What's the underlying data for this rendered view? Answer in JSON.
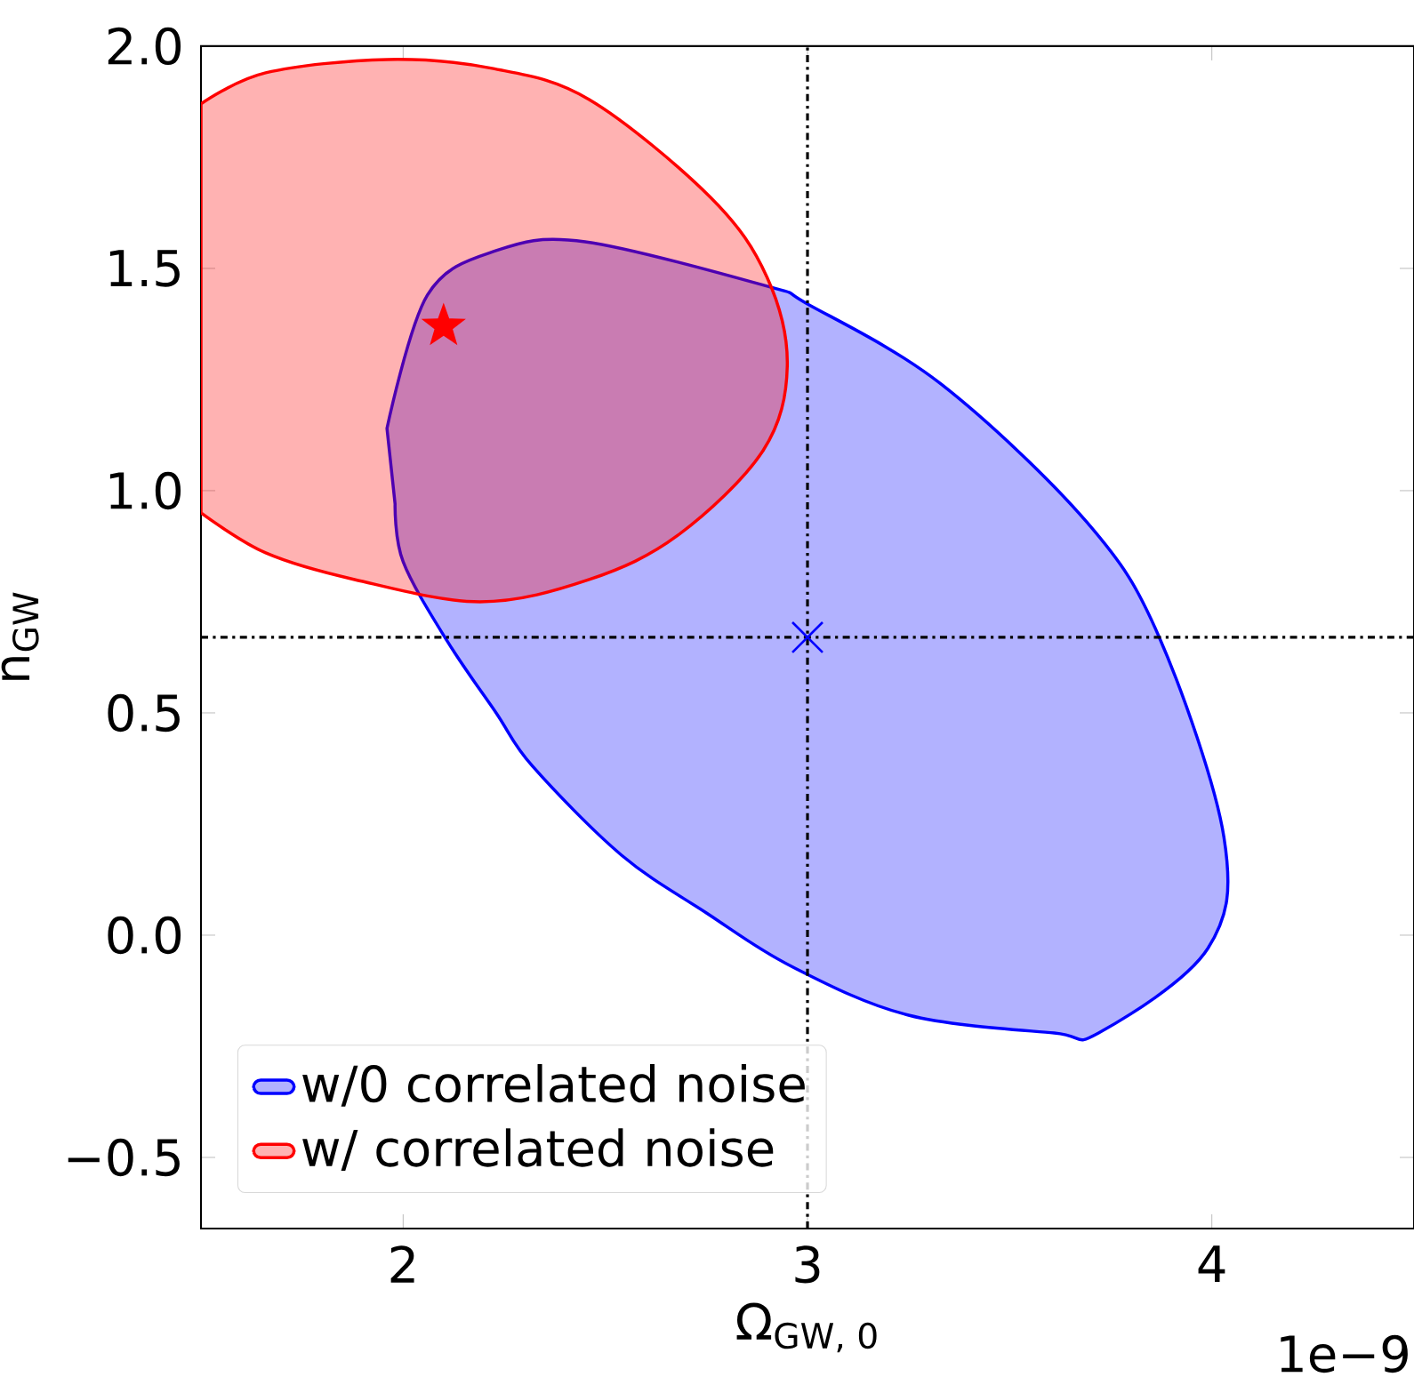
{
  "chart_data": {
    "type": "area",
    "xlabel": "Ω$_{GW, 0}$",
    "ylabel": "n$_{GW}$",
    "annotations": [
      "1e−9"
    ],
    "xlim": [
      1.5,
      4.5
    ],
    "ylim": [
      -0.66,
      2.0
    ],
    "xticks": [
      2,
      3,
      4
    ],
    "yticks": [
      {
        "value": -0.5,
        "label": "−0.5"
      },
      {
        "value": 0,
        "label": "0.0"
      },
      {
        "value": 0.5,
        "label": "0.5"
      },
      {
        "value": 1,
        "label": "1.0"
      },
      {
        "value": 1.5,
        "label": "1.5"
      },
      {
        "value": 2,
        "label": "2.0"
      }
    ],
    "legend": "bottom left",
    "grid": false,
    "series": [
      {
        "name": "w/0 correlated noise",
        "color": "#0000ff",
        "x": [
          1.96,
          2.06,
          2.23,
          2.45,
          2.9,
          3.0,
          3.33,
          3.69,
          3.87,
          4.03,
          3.99,
          3.72,
          3.61,
          3.25,
          2.96,
          2.75,
          2.54,
          2.32,
          2.23,
          2.11,
          2.0,
          1.98
        ],
        "values": [
          1.14,
          1.44,
          1.54,
          1.56,
          1.46,
          1.42,
          1.24,
          0.93,
          0.67,
          0.22,
          -0.03,
          -0.22,
          -0.22,
          -0.18,
          -0.07,
          0.05,
          0.18,
          0.38,
          0.5,
          0.66,
          0.84,
          0.97
        ]
      },
      {
        "name": "w/ correlated noise",
        "color": "#ff0000",
        "x": [
          1.5,
          1.66,
          1.96,
          2.22,
          2.46,
          2.76,
          2.9,
          2.95,
          2.89,
          2.68,
          2.46,
          2.19,
          1.88,
          1.66,
          1.5
        ],
        "values": [
          1.87,
          1.94,
          1.97,
          1.95,
          1.88,
          1.66,
          1.48,
          1.28,
          1.09,
          0.9,
          0.8,
          0.75,
          0.8,
          0.86,
          0.95
        ]
      },
      {
        "type": "scatter",
        "marker": "star",
        "color": "#ff0000",
        "x": [
          2.1
        ],
        "values": [
          1.37
        ]
      },
      {
        "type": "scatter",
        "marker": "cross",
        "color": "#0000ff",
        "x": [
          3.0
        ],
        "values": [
          0.67
        ]
      }
    ],
    "ref_lines": [
      {
        "axis": "x",
        "value": 3,
        "color": "#000000",
        "line_style": "dashdot"
      },
      {
        "axis": "y",
        "value": 0.67,
        "color": "#000000",
        "line_style": "dashdot"
      }
    ]
  }
}
